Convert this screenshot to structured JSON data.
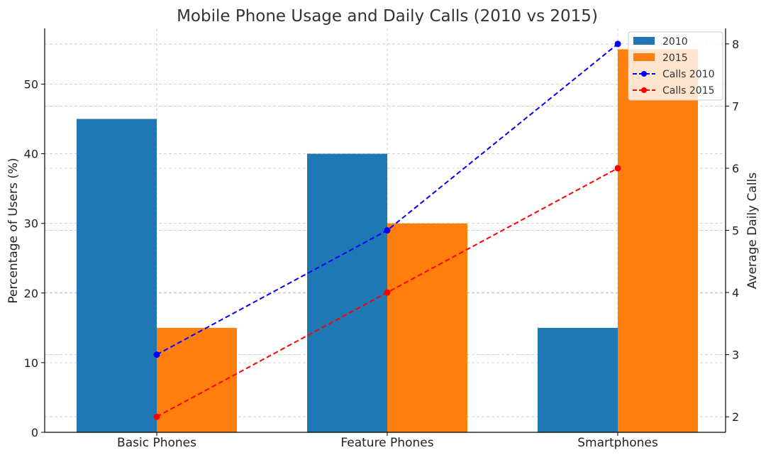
{
  "chart_data": {
    "type": "bar",
    "title": "Mobile Phone Usage and Daily Calls (2010 vs 2015)",
    "categories": [
      "Basic Phones",
      "Feature Phones",
      "Smartphones"
    ],
    "bar_axis": {
      "ylabel": "Percentage of Users (%)",
      "ylim": [
        0,
        58
      ],
      "ticks": [
        0,
        10,
        20,
        30,
        40,
        50
      ]
    },
    "line_axis": {
      "ylabel": "Average Daily Calls",
      "ylim": [
        1.75,
        8.25
      ],
      "ticks": [
        2,
        3,
        4,
        5,
        6,
        7,
        8
      ]
    },
    "series": [
      {
        "name": "2010",
        "type": "bar",
        "axis": "left",
        "values": [
          45,
          40,
          15
        ],
        "color": "#1f77b4"
      },
      {
        "name": "2015",
        "type": "bar",
        "axis": "left",
        "values": [
          15,
          30,
          55
        ],
        "color": "#ff7f0e"
      },
      {
        "name": "Calls 2010",
        "type": "line",
        "axis": "right",
        "values": [
          3,
          5,
          8
        ],
        "color": "#0000ff",
        "style": "dashed",
        "marker": "circle"
      },
      {
        "name": "Calls 2015",
        "type": "line",
        "axis": "right",
        "values": [
          2,
          4,
          6
        ],
        "color": "#ff0000",
        "style": "dashed",
        "marker": "circle"
      }
    ],
    "grid": true,
    "legend_position": "top-right"
  }
}
